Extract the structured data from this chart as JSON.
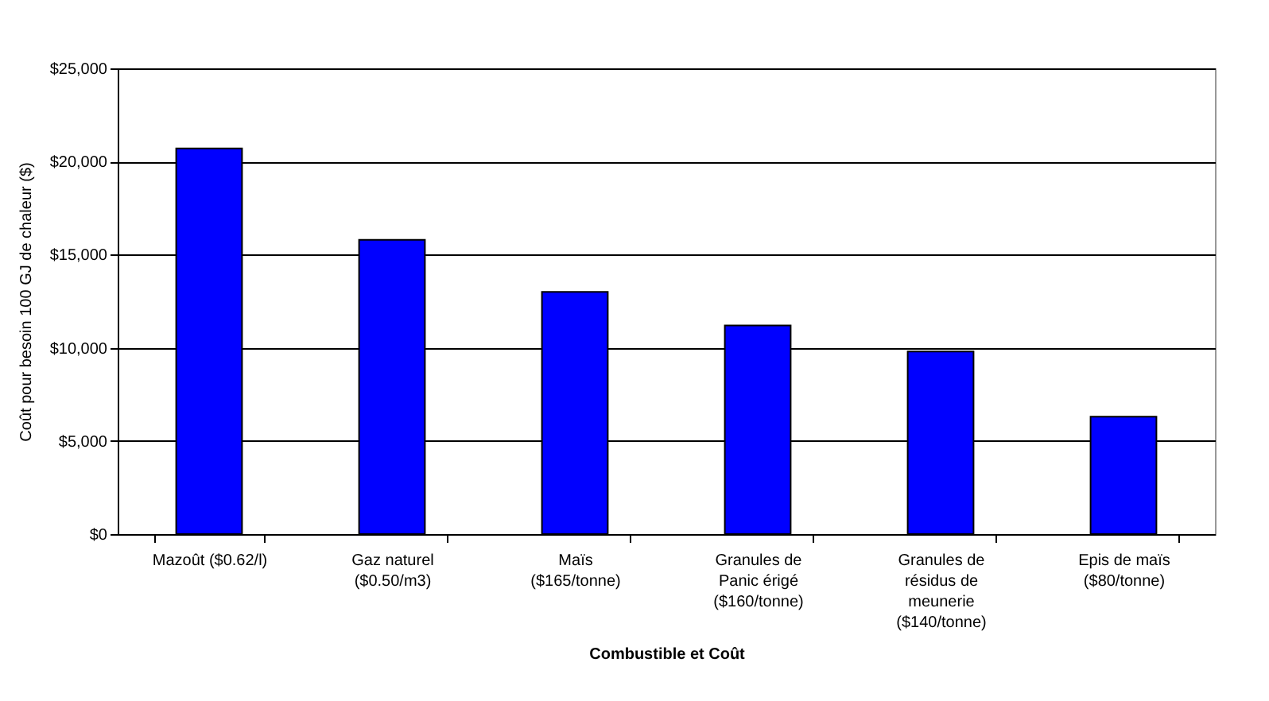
{
  "chart_data": {
    "type": "bar",
    "xlabel": "Combustible et Coût",
    "ylabel": "Coût pour besoin 100 GJ de chaleur ($)",
    "categories": [
      "Mazoût ($0.62/l)",
      "Gaz naturel ($0.50/m3)",
      "Maïs ($165/tonne)",
      "Granules de Panic érigé ($160/tonne)",
      "Granules de résidus de meunerie ($140/tonne)",
      "Epis de maïs ($80/tonne)"
    ],
    "values": [
      20700,
      15800,
      13000,
      11200,
      9800,
      6300
    ],
    "color": "#0000ff",
    "ylim": [
      0,
      25000
    ],
    "yticks": [
      {
        "value": 0,
        "label": "$0"
      },
      {
        "value": 5000,
        "label": "$5,000"
      },
      {
        "value": 10000,
        "label": "$10,000"
      },
      {
        "value": 15000,
        "label": "$15,000"
      },
      {
        "value": 20000,
        "label": "$20,000"
      },
      {
        "value": 25000,
        "label": "$25,000"
      }
    ],
    "grid": "y"
  }
}
